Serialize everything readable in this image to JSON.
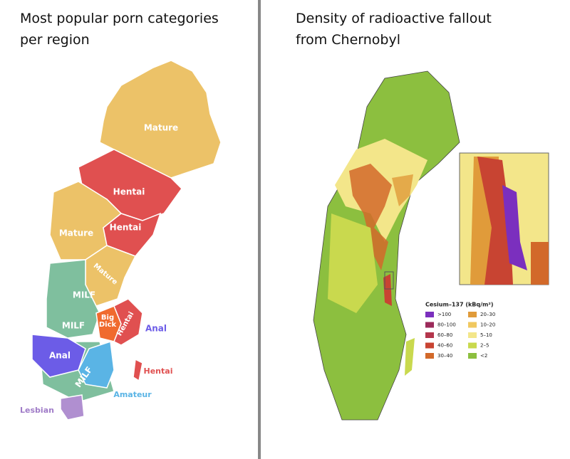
{
  "left_panel": {
    "title": [
      "Most popular porn categories",
      "per region"
    ],
    "regions": [
      "Mature",
      "Hentai",
      "Mature",
      "Hentai",
      "Mature",
      "MILF",
      "MILF",
      "Big",
      "Dick",
      "Hentai",
      "Anal",
      "Anal",
      "MILF",
      "Hentai",
      "Amateur",
      "Lesbian"
    ]
  },
  "right_panel": {
    "title": [
      "Density of radioactive fallout",
      "from Chernobyl"
    ],
    "legend": {
      "title": "Cesium–137 (kBq/m²)",
      "items": [
        {
          "label": ">100",
          "color": "#7b2fbe"
        },
        {
          "label": "80–100",
          "color": "#9b2a5a"
        },
        {
          "label": "60–80",
          "color": "#b3364c"
        },
        {
          "label": "40–60",
          "color": "#c84432"
        },
        {
          "label": "30–40",
          "color": "#d2692a"
        },
        {
          "label": "20–30",
          "color": "#e09b3a"
        },
        {
          "label": "10–20",
          "color": "#f0c860"
        },
        {
          "label": "5–10",
          "color": "#f3e68a"
        },
        {
          "label": "2–5",
          "color": "#c9d94e"
        },
        {
          "label": "<2",
          "color": "#8cbf3f"
        }
      ]
    }
  }
}
